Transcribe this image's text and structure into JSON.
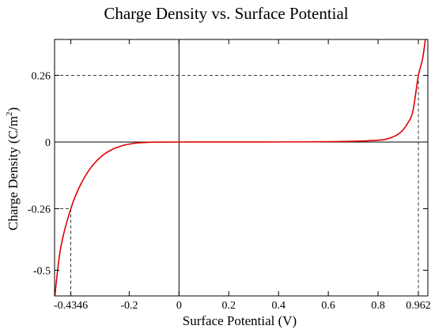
{
  "chart_data": {
    "type": "line",
    "title": "Charge Density vs. Surface Potential",
    "xlabel": "Surface Potential (V)",
    "ylabel": "Charge Density (C/m",
    "ylabel_sup": "2",
    "ylabel_close": ")",
    "xlim": [
      -0.5,
      1.0
    ],
    "ylim": [
      -0.6,
      0.4
    ],
    "x_ticks": [
      -0.4346,
      -0.2,
      0,
      0.2,
      0.4,
      0.6,
      0.8,
      0.962
    ],
    "x_tick_labels": [
      "-0.4346",
      "-0.2",
      "0",
      "0.2",
      "0.4",
      "0.6",
      "0.8",
      "0.962"
    ],
    "y_ticks": [
      -0.5,
      -0.26,
      0,
      0.26
    ],
    "y_tick_labels": [
      "-0.5",
      "-0.26",
      "0",
      "0.26"
    ],
    "grid": false,
    "series": [
      {
        "color": "#e00000",
        "x": [
          -0.5,
          -0.48,
          -0.46,
          -0.4346,
          -0.42,
          -0.4,
          -0.38,
          -0.36,
          -0.34,
          -0.32,
          -0.3,
          -0.28,
          -0.26,
          -0.24,
          -0.22,
          -0.2,
          -0.18,
          -0.16,
          -0.14,
          -0.12,
          -0.1,
          -0.05,
          0,
          0.1,
          0.2,
          0.3,
          0.4,
          0.5,
          0.6,
          0.7,
          0.75,
          0.8,
          0.82,
          0.84,
          0.86,
          0.88,
          0.9,
          0.92,
          0.94,
          0.962,
          0.98,
          1.0
        ],
        "y": [
          -0.61,
          -0.44,
          -0.345,
          -0.26,
          -0.22,
          -0.175,
          -0.138,
          -0.108,
          -0.083,
          -0.063,
          -0.047,
          -0.035,
          -0.025,
          -0.018,
          -0.012,
          -0.008,
          -0.005,
          -0.003,
          -0.002,
          -0.001,
          -0.0005,
          -0.0001,
          0,
          5e-05,
          0.0001,
          0.0002,
          0.0004,
          0.0008,
          0.0015,
          0.003,
          0.0045,
          0.007,
          0.009,
          0.013,
          0.02,
          0.03,
          0.047,
          0.075,
          0.12,
          0.26,
          0.33,
          0.48
        ]
      }
    ],
    "reference_points": [
      {
        "x": -0.4346,
        "y": -0.26
      },
      {
        "x": 0.962,
        "y": 0.26
      }
    ]
  }
}
